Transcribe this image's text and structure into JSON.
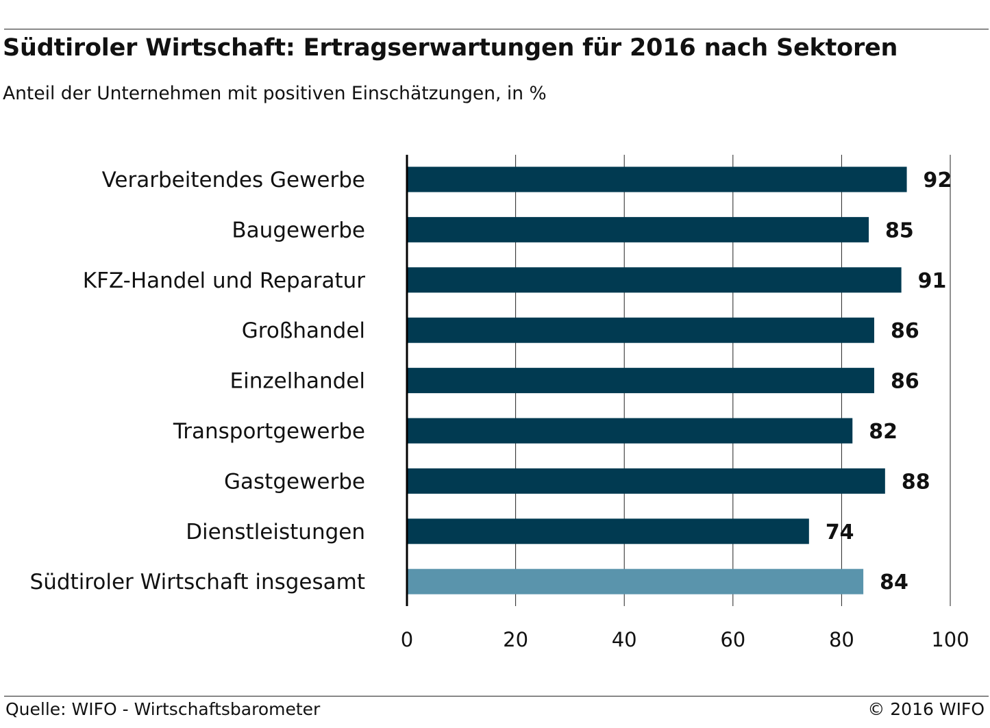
{
  "header": {
    "title": "Südtiroler Wirtschaft: Ertragserwartungen für 2016 nach Sektoren",
    "subtitle": "Anteil der Unternehmen mit positiven Einschätzungen, in %"
  },
  "footer": {
    "source": "Quelle: WIFO - Wirtschaftsbarometer",
    "copyright": "© 2016 WIFO"
  },
  "colors": {
    "bar_primary": "#013A51",
    "bar_highlight": "#5A94AC",
    "gridline": "#222222",
    "axis": "#000000"
  },
  "chart_data": {
    "type": "bar",
    "orientation": "horizontal",
    "title": "Südtiroler Wirtschaft: Ertragserwartungen für 2016 nach Sektoren",
    "subtitle": "Anteil der Unternehmen mit positiven Einschätzungen, in %",
    "categories": [
      "Verarbeitendes Gewerbe",
      "Baugewerbe",
      "KFZ-Handel und Reparatur",
      "Großhandel",
      "Einzelhandel",
      "Transportgewerbe",
      "Gastgewerbe",
      "Dienstleistungen",
      "Südtiroler Wirtschaft insgesamt"
    ],
    "values": [
      92,
      85,
      91,
      86,
      86,
      82,
      88,
      74,
      84
    ],
    "highlight_index": 8,
    "xlim": [
      0,
      100
    ],
    "xticks": [
      0,
      20,
      40,
      60,
      80,
      100
    ],
    "grid": true,
    "legend": "none"
  }
}
